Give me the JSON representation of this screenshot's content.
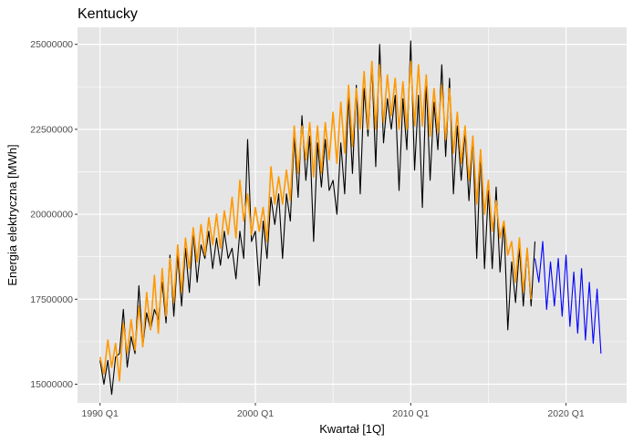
{
  "chart_data": {
    "type": "line",
    "title": "Kentucky",
    "xlabel": "Kwartał [1Q]",
    "ylabel": "Energia elektryczna [MWh]",
    "x_tick_labels": [
      "1990 Q1",
      "2000 Q1",
      "2010 Q1",
      "2020 Q1"
    ],
    "x_ticks": [
      1990,
      2000,
      2010,
      2020
    ],
    "y_tick_labels": [
      "15000000",
      "17500000",
      "20000000",
      "22500000",
      "25000000"
    ],
    "y_ticks": [
      15000000,
      17500000,
      20000000,
      22500000,
      25000000
    ],
    "xlim": [
      1988.55,
      2023.9
    ],
    "ylim": [
      14450000,
      25500000
    ],
    "x_start": 1990.0,
    "x_step": 0.25,
    "grid": true,
    "background": "#e5e5e5",
    "gridColor": "#ffffff",
    "series": [
      {
        "color": "#000000",
        "values": [
          15700000,
          15000000,
          15700000,
          14700000,
          15800000,
          15900000,
          17200000,
          15500000,
          16400000,
          15900000,
          17900000,
          16100000,
          17100000,
          16600000,
          17200000,
          16900000,
          18000000,
          16800000,
          18800000,
          17000000,
          18800000,
          17300000,
          19000000,
          17700000,
          19500000,
          18000000,
          19100000,
          18700000,
          19500000,
          18400000,
          19300000,
          18500000,
          19500000,
          18700000,
          19000000,
          18100000,
          19500000,
          18700000,
          22200000,
          19200000,
          19500000,
          17900000,
          19800000,
          18700000,
          20500000,
          19700000,
          20600000,
          18700000,
          20600000,
          19800000,
          22300000,
          20500000,
          22900000,
          21000000,
          22300000,
          19200000,
          22100000,
          20800000,
          22200000,
          20700000,
          21000000,
          20000000,
          22100000,
          20600000,
          23500000,
          21200000,
          23800000,
          20600000,
          23700000,
          22300000,
          24400000,
          21400000,
          25000000,
          22100000,
          23400000,
          22500000,
          23500000,
          20700000,
          23400000,
          21900000,
          25100000,
          21300000,
          23500000,
          20200000,
          23900000,
          21000000,
          23300000,
          21900000,
          24400000,
          21700000,
          24000000,
          20600000,
          22600000,
          21000000,
          22400000,
          20400000,
          22300000,
          18700000,
          21900000,
          18400000,
          20700000,
          18400000,
          20800000,
          18300000,
          19800000,
          16600000,
          18600000,
          17400000,
          19000000,
          17300000,
          19000000,
          17300000,
          19200000
        ],
        "x_offset_index": 0
      },
      {
        "color": "#ff9900",
        "values": [
          15800000,
          15300000,
          16300000,
          15500000,
          16200000,
          15100000,
          16800000,
          15900000,
          16900000,
          16000000,
          17300000,
          16100000,
          17700000,
          16600000,
          18200000,
          16500000,
          18400000,
          17000000,
          18700000,
          17400000,
          19100000,
          17700000,
          19300000,
          18400000,
          19600000,
          18600000,
          19700000,
          18800000,
          19900000,
          19100000,
          20000000,
          19000000,
          20100000,
          19400000,
          20500000,
          19300000,
          21000000,
          19800000,
          20600000,
          19400000,
          20200000,
          19500000,
          20200000,
          19200000,
          21400000,
          20300000,
          21100000,
          20300000,
          21300000,
          20400000,
          22600000,
          21200000,
          22600000,
          21600000,
          22700000,
          21100000,
          22600000,
          21200000,
          22700000,
          21600000,
          23000000,
          21500000,
          23300000,
          21800000,
          23800000,
          22000000,
          23700000,
          22500000,
          24200000,
          22500000,
          24500000,
          22500000,
          24400000,
          22700000,
          24100000,
          22900000,
          24000000,
          22500000,
          23900000,
          22500000,
          24500000,
          22600000,
          24400000,
          22600000,
          24100000,
          22300000,
          23700000,
          22400000,
          23800000,
          22200000,
          23700000,
          21800000,
          23000000,
          21500000,
          22600000,
          21000000,
          22300000,
          20300000,
          21900000,
          20000000,
          21000000,
          19500000,
          20400000,
          19300000,
          19800000,
          18800000,
          19200000,
          18000000,
          19300000,
          17700000,
          19000000,
          17500000
        ],
        "x_offset_index": 0
      },
      {
        "color": "#0000ff",
        "values": [
          18700000,
          18000000,
          19200000,
          17200000,
          18600000,
          17300000,
          18700000,
          17000000,
          18800000,
          16700000,
          18300000,
          16500000,
          18400000,
          16300000,
          18000000,
          16200000,
          17800000,
          15900000
        ],
        "x_offset_index": 112
      }
    ]
  }
}
